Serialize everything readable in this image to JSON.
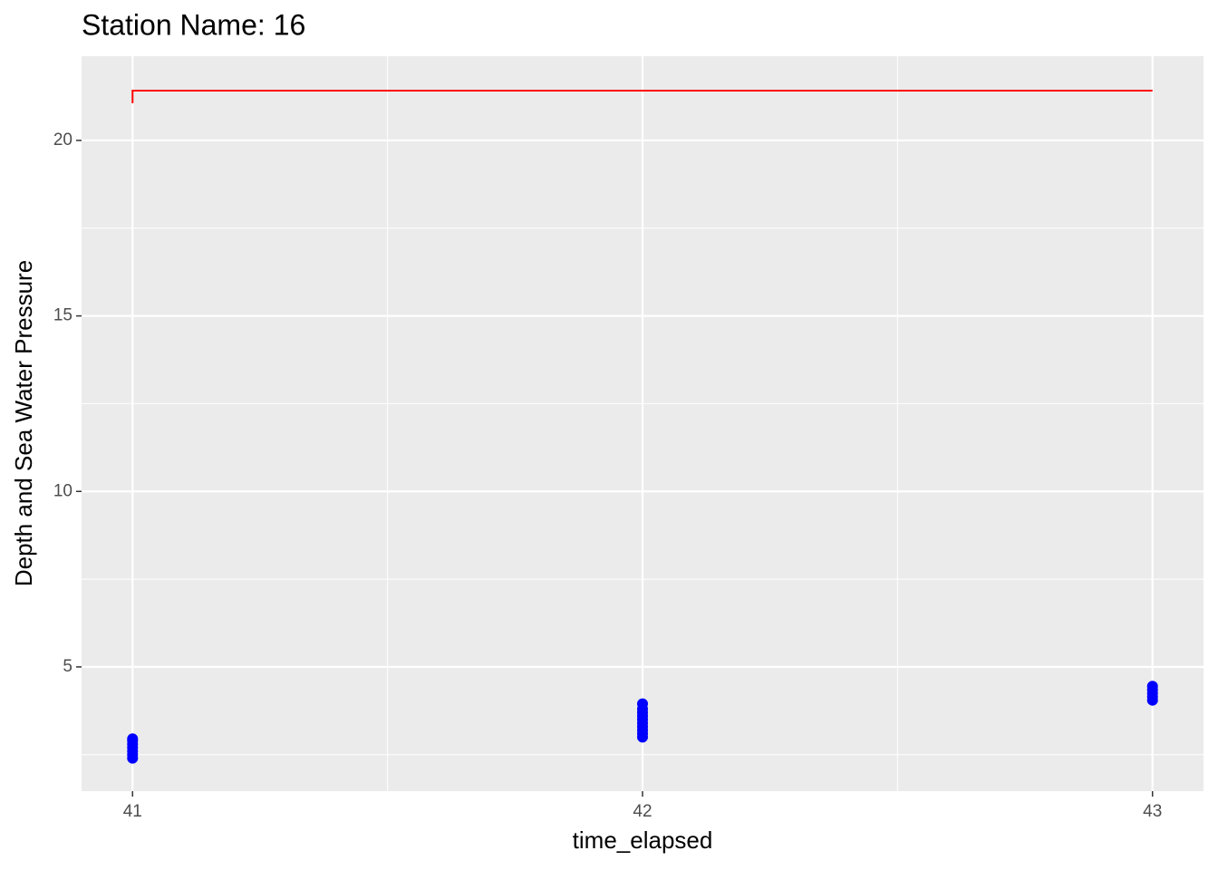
{
  "chart_data": {
    "type": "line",
    "title": "Station Name: 16",
    "x_label": "time_elapsed",
    "y_label": "Depth and Sea Water Pressure",
    "xlim": [
      40.9,
      43.1
    ],
    "ylim": [
      1.46,
      22.4
    ],
    "xticks": [
      41,
      42,
      43
    ],
    "yticks": [
      5,
      10,
      15,
      20
    ],
    "x_minor_grid": [
      41.5,
      42.5
    ],
    "y_minor_grid": [
      2.5,
      7.5,
      12.5,
      17.5
    ],
    "grid": true,
    "series": [
      {
        "type": "line",
        "color": "#ff0000",
        "x": [
          41,
          41,
          43
        ],
        "values": [
          21.06,
          21.42,
          21.42
        ]
      },
      {
        "type": "scatter",
        "color": "#0000ff",
        "x": [
          41,
          41,
          41,
          41,
          41,
          41,
          41,
          42,
          42,
          42,
          42,
          42,
          42,
          42,
          42,
          42,
          42,
          43,
          43,
          43,
          43,
          43
        ],
        "values": [
          2.4,
          2.5,
          2.6,
          2.7,
          2.8,
          2.9,
          2.95,
          3.0,
          3.1,
          3.2,
          3.3,
          3.4,
          3.5,
          3.6,
          3.7,
          3.8,
          3.95,
          4.05,
          4.15,
          4.25,
          4.35,
          4.45
        ]
      }
    ]
  }
}
